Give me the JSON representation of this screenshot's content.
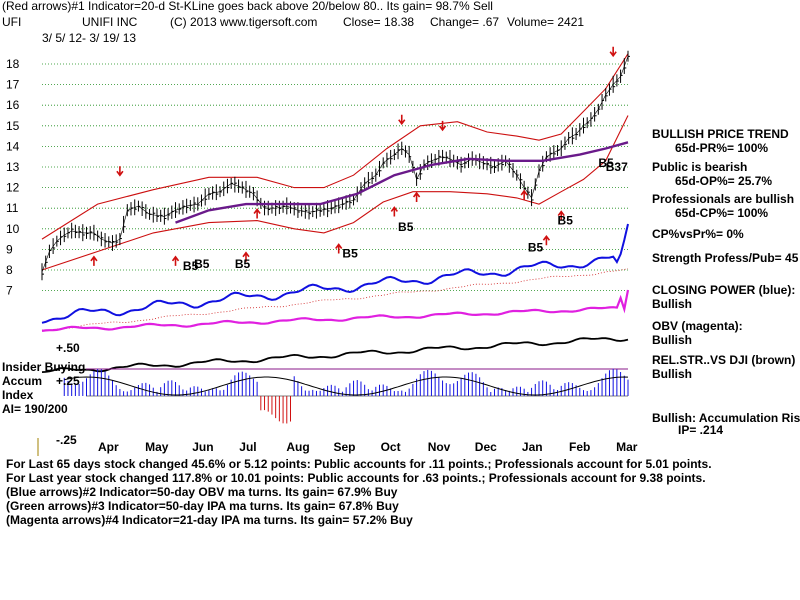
{
  "header": {
    "line1": "(Red arrows)#1 Indicator=20-d St-KLine goes back above 20/below 80.. Its gain= 98.7% Sell",
    "ticker": "UFI",
    "company": "UNIFI INC",
    "copyright": "(C) 2013 www.tigersoft.com",
    "close": "Close=  18.38",
    "change": "Change= .67",
    "volume": "Volume= 2421",
    "date_range": "3/ 5/ 12-  3/ 19/ 13"
  },
  "right_panel": {
    "trend_title": "BULLISH PRICE TREND",
    "pr": "65d-PR%= 100%",
    "public": "Public is bearish",
    "op": "65d-OP%= 25.7%",
    "pros": "Professionals are bullish",
    "cp": "65d-CP%= 100%",
    "cpvspr": "CP%vsPr%=  0%",
    "strength": "Strength Profess/Pub= 45",
    "closing_power": "CLOSING POWER (blue):",
    "closing_power_val": "Bullish",
    "obv": "OBV (magenta):",
    "obv_val": "Bullish",
    "relstr": "REL.STR..VS DJI (brown)",
    "relstr_val": "Bullish",
    "accum": "Bullish: Accumulation Risi",
    "ip": "IP=  .214"
  },
  "left_labels": {
    "plus50": "+.50",
    "insider": "Insider Buying",
    "accum": "Accum",
    "plus25": "+.25",
    "index": "Index",
    "ai": "AI= 190/200",
    "minus25": "-.25"
  },
  "footer": {
    "line1": "For Last 65 days stock changed  45.6% or  5.12 points:  Public accounts for  .11 points.;  Professionals account for  5.01 points.",
    "line2": "For Last year stock changed  117.8% or  10.01 points:  Public accounts for  .63 points.;  Professionals account for  9.38 points.",
    "line3": "(Blue arrows)#2 Indicator=50-day OBV ma turns. Its gain= 67.9% Buy",
    "line4": "(Green arrows)#3 Indicator=50-day IPA ma turns. Its gain= 67.8% Buy",
    "line5": "(Magenta arrows)#4 Indicator=21-day IPA ma turns. Its gain= 57.2% Buy"
  },
  "chart_data": {
    "type": "line",
    "title": "UNIFI INC (UFI) daily prices with indicators",
    "y_ticks": [
      18,
      17,
      16,
      15,
      14,
      13,
      12,
      11,
      10,
      9,
      8,
      7
    ],
    "ylim": [
      7,
      18.5
    ],
    "x_months": [
      "Apr",
      "May",
      "Jun",
      "Jul",
      "Aug",
      "Sep",
      "Oct",
      "Nov",
      "Dec",
      "Jan",
      "Feb",
      "Mar"
    ],
    "price_series": {
      "name": "Close",
      "points": [
        [
          0,
          7.9
        ],
        [
          2,
          8.9
        ],
        [
          4,
          9.4
        ],
        [
          6,
          9.7
        ],
        [
          8,
          9.9
        ],
        [
          11,
          9.8
        ],
        [
          14,
          9.8
        ],
        [
          16,
          9.5
        ],
        [
          19,
          9.3
        ],
        [
          21,
          9.5
        ],
        [
          23,
          10.9
        ],
        [
          26,
          11.1
        ],
        [
          29,
          10.7
        ],
        [
          33,
          10.6
        ],
        [
          36,
          10.9
        ],
        [
          39,
          11.1
        ],
        [
          42,
          11.2
        ],
        [
          45,
          11.7
        ],
        [
          48,
          11.8
        ],
        [
          51,
          12.2
        ],
        [
          54,
          12.0
        ],
        [
          57,
          11.7
        ],
        [
          60,
          11.0
        ],
        [
          63,
          11.0
        ],
        [
          66,
          11.1
        ],
        [
          69,
          10.9
        ],
        [
          72,
          10.8
        ],
        [
          75,
          10.9
        ],
        [
          78,
          11.0
        ],
        [
          81,
          11.2
        ],
        [
          84,
          11.4
        ],
        [
          87,
          12.2
        ],
        [
          90,
          12.6
        ],
        [
          92,
          13.2
        ],
        [
          95,
          13.6
        ],
        [
          97,
          13.9
        ],
        [
          99,
          13.6
        ],
        [
          101,
          12.4
        ],
        [
          103,
          13.1
        ],
        [
          105,
          13.3
        ],
        [
          108,
          13.5
        ],
        [
          110,
          13.4
        ],
        [
          113,
          13.1
        ],
        [
          116,
          13.4
        ],
        [
          119,
          13.2
        ],
        [
          122,
          13.0
        ],
        [
          125,
          13.3
        ],
        [
          128,
          12.6
        ],
        [
          130,
          12.0
        ],
        [
          132,
          11.5
        ],
        [
          134,
          12.8
        ],
        [
          136,
          13.5
        ],
        [
          138,
          13.7
        ],
        [
          140,
          13.9
        ],
        [
          142,
          14.4
        ],
        [
          144,
          14.6
        ],
        [
          146,
          15.0
        ],
        [
          148,
          15.3
        ],
        [
          150,
          15.8
        ],
        [
          152,
          16.5
        ],
        [
          154,
          17.0
        ],
        [
          156,
          17.4
        ],
        [
          158,
          18.38
        ]
      ]
    },
    "upper_band": {
      "name": "Upper band",
      "points": [
        [
          0,
          9.5
        ],
        [
          15,
          11.2
        ],
        [
          30,
          11.9
        ],
        [
          45,
          12.5
        ],
        [
          58,
          12.5
        ],
        [
          68,
          12.0
        ],
        [
          76,
          12.0
        ],
        [
          84,
          12.6
        ],
        [
          93,
          13.9
        ],
        [
          102,
          15.0
        ],
        [
          112,
          15.2
        ],
        [
          120,
          14.7
        ],
        [
          128,
          14.5
        ],
        [
          134,
          14.3
        ],
        [
          140,
          14.6
        ],
        [
          146,
          15.7
        ],
        [
          152,
          16.8
        ],
        [
          158,
          18.5
        ]
      ]
    },
    "lower_band": {
      "name": "Lower band",
      "points": [
        [
          0,
          8.0
        ],
        [
          15,
          8.9
        ],
        [
          30,
          9.8
        ],
        [
          45,
          10.3
        ],
        [
          58,
          10.4
        ],
        [
          68,
          10.0
        ],
        [
          76,
          9.8
        ],
        [
          84,
          10.3
        ],
        [
          92,
          11.3
        ],
        [
          100,
          11.8
        ],
        [
          110,
          11.8
        ],
        [
          120,
          11.7
        ],
        [
          128,
          11.5
        ],
        [
          134,
          11.2
        ],
        [
          140,
          11.8
        ],
        [
          146,
          12.4
        ],
        [
          152,
          13.3
        ],
        [
          158,
          15.5
        ]
      ]
    },
    "ma_series": {
      "name": "Moving average (purple)",
      "points": [
        [
          36,
          10.3
        ],
        [
          45,
          10.9
        ],
        [
          55,
          11.2
        ],
        [
          65,
          11.2
        ],
        [
          75,
          11.2
        ],
        [
          85,
          11.7
        ],
        [
          95,
          12.6
        ],
        [
          105,
          13.1
        ],
        [
          115,
          13.4
        ],
        [
          125,
          13.3
        ],
        [
          135,
          13.3
        ],
        [
          145,
          13.6
        ],
        [
          152,
          13.9
        ],
        [
          158,
          14.2
        ]
      ]
    },
    "annotations": [
      "B5",
      "B5",
      "B5",
      "B5",
      "B5",
      "B5",
      "B5",
      "B5",
      "B37"
    ],
    "closing_power_label": "CLOSING POWER (blue)",
    "obv_label": "OBV (magenta)",
    "relstr_label": "REL.STR..VS DJI (brown)",
    "accum_label": "Accum Index"
  }
}
